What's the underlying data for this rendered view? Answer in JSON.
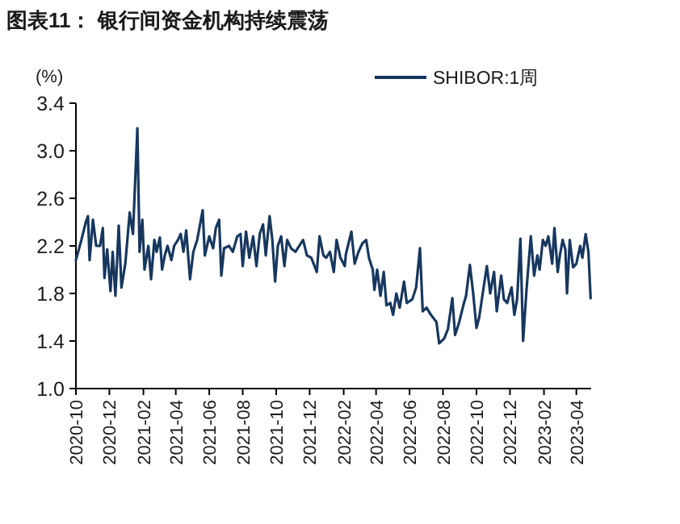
{
  "chart_data": {
    "type": "line",
    "title": "图表11：  银行间资金机构持续震荡",
    "ylabel": "(%)",
    "xlim": [
      "2020-10-01",
      "2023-04-28"
    ],
    "xticks": [
      "2020-10",
      "2020-12",
      "2021-02",
      "2021-04",
      "2021-06",
      "2021-08",
      "2021-10",
      "2021-12",
      "2022-02",
      "2022-04",
      "2022-06",
      "2022-08",
      "2022-10",
      "2022-12",
      "2023-02",
      "2023-04"
    ],
    "ylim": [
      1.0,
      3.4
    ],
    "yticks": [
      {
        "value": 1.0,
        "label": "1.0"
      },
      1.4,
      1.8,
      2.2,
      2.6,
      {
        "value": 3.0,
        "label": "3.0"
      },
      3.4
    ],
    "legend": "top right",
    "grid": false,
    "marker": "none",
    "line_style": "solid",
    "series": [
      {
        "name": "SHIBOR:1周",
        "color": "#17375e",
        "x": [
          "2020-10-01",
          "2020-10-11",
          "2020-10-19",
          "2020-10-23",
          "2020-10-26",
          "2020-11-01",
          "2020-11-07",
          "2020-11-14",
          "2020-11-19",
          "2020-11-22",
          "2020-11-27",
          "2020-12-03",
          "2020-12-07",
          "2020-12-12",
          "2020-12-18",
          "2020-12-23",
          "2020-12-30",
          "2021-01-07",
          "2021-01-13",
          "2021-01-21",
          "2021-01-25",
          "2021-01-30",
          "2021-02-03",
          "2021-02-10",
          "2021-02-15",
          "2021-02-21",
          "2021-02-25",
          "2021-03-03",
          "2021-03-07",
          "2021-03-12",
          "2021-03-17",
          "2021-03-24",
          "2021-03-29",
          "2021-04-05",
          "2021-04-10",
          "2021-04-15",
          "2021-04-20",
          "2021-04-27",
          "2021-05-03",
          "2021-05-10",
          "2021-05-20",
          "2021-05-24",
          "2021-06-01",
          "2021-06-08",
          "2021-06-13",
          "2021-06-19",
          "2021-06-23",
          "2021-06-28",
          "2021-07-07",
          "2021-07-14",
          "2021-07-22",
          "2021-07-28",
          "2021-08-01",
          "2021-08-07",
          "2021-08-13",
          "2021-08-20",
          "2021-08-26",
          "2021-09-01",
          "2021-09-07",
          "2021-09-12",
          "2021-09-19",
          "2021-09-24",
          "2021-09-29",
          "2021-10-04",
          "2021-10-10",
          "2021-10-16",
          "2021-10-21",
          "2021-10-28",
          "2021-11-05",
          "2021-11-12",
          "2021-11-19",
          "2021-11-26",
          "2021-12-04",
          "2021-12-14",
          "2021-12-19",
          "2021-12-26",
          "2021-12-31",
          "2022-01-07",
          "2022-01-14",
          "2022-01-19",
          "2022-01-26",
          "2022-02-03",
          "2022-02-05",
          "2022-02-15",
          "2022-02-21",
          "2022-02-28",
          "2022-03-07",
          "2022-03-14",
          "2022-03-19",
          "2022-03-26",
          "2022-03-29",
          "2022-04-03",
          "2022-04-09",
          "2022-04-15",
          "2022-04-20",
          "2022-04-27",
          "2022-05-02",
          "2022-05-08",
          "2022-05-14",
          "2022-05-22",
          "2022-05-27",
          "2022-06-06",
          "2022-06-13",
          "2022-06-20",
          "2022-06-25",
          "2022-07-02",
          "2022-07-10",
          "2022-07-20",
          "2022-07-25",
          "2022-08-03",
          "2022-08-10",
          "2022-08-18",
          "2022-08-23",
          "2022-08-30",
          "2022-09-07",
          "2022-09-12",
          "2022-09-19",
          "2022-09-25",
          "2022-10-01",
          "2022-10-06",
          "2022-10-14",
          "2022-10-20",
          "2022-10-26",
          "2022-11-02",
          "2022-11-07",
          "2022-11-15",
          "2022-11-20",
          "2022-11-26",
          "2022-12-04",
          "2022-12-09",
          "2022-12-14",
          "2022-12-20",
          "2022-12-25",
          "2022-12-31",
          "2023-01-08",
          "2023-01-14",
          "2023-01-20",
          "2023-01-24",
          "2023-01-30",
          "2023-02-04",
          "2023-02-09",
          "2023-02-16",
          "2023-02-20",
          "2023-02-26",
          "2023-03-02",
          "2023-03-07",
          "2023-03-12",
          "2023-03-15",
          "2023-03-20",
          "2023-03-26",
          "2023-04-01",
          "2023-04-08",
          "2023-04-12",
          "2023-04-18",
          "2023-04-23",
          "2023-04-27"
        ],
        "values": [
          2.08,
          2.25,
          2.4,
          2.45,
          2.08,
          2.42,
          2.2,
          2.2,
          2.35,
          1.93,
          2.17,
          1.82,
          2.15,
          1.78,
          2.37,
          1.85,
          2.05,
          2.48,
          2.3,
          3.19,
          2.15,
          2.42,
          2.0,
          2.2,
          1.92,
          2.25,
          2.15,
          2.27,
          2.0,
          2.12,
          2.2,
          2.08,
          2.2,
          2.25,
          2.3,
          2.15,
          2.33,
          1.92,
          2.15,
          2.25,
          2.5,
          2.12,
          2.28,
          2.18,
          2.35,
          2.42,
          1.95,
          2.18,
          2.2,
          2.15,
          2.28,
          2.3,
          2.03,
          2.32,
          2.1,
          2.28,
          2.03,
          2.3,
          2.38,
          2.12,
          2.45,
          2.25,
          1.9,
          2.2,
          2.28,
          2.03,
          2.25,
          2.18,
          2.15,
          2.2,
          2.25,
          2.12,
          2.1,
          1.98,
          2.28,
          2.12,
          2.1,
          2.15,
          1.98,
          2.25,
          2.1,
          2.03,
          2.13,
          2.32,
          2.05,
          2.15,
          2.22,
          2.25,
          2.1,
          2.0,
          1.83,
          2.0,
          1.78,
          1.98,
          1.7,
          1.72,
          1.62,
          1.8,
          1.68,
          1.9,
          1.72,
          1.75,
          1.85,
          2.18,
          1.65,
          1.68,
          1.62,
          1.56,
          1.38,
          1.42,
          1.5,
          1.76,
          1.45,
          1.55,
          1.7,
          1.78,
          2.04,
          1.8,
          1.51,
          1.6,
          1.85,
          2.03,
          1.8,
          1.98,
          1.65,
          1.95,
          1.75,
          1.72,
          1.85,
          1.62,
          1.75,
          2.26,
          1.4,
          1.82,
          2.28,
          1.95,
          2.12,
          2.0,
          2.25,
          2.2,
          2.28,
          2.05,
          2.35,
          1.98,
          2.12,
          2.25,
          2.17,
          1.8,
          2.25,
          2.02,
          2.05,
          2.2,
          2.1,
          2.3,
          2.15,
          1.76
        ]
      }
    ]
  }
}
